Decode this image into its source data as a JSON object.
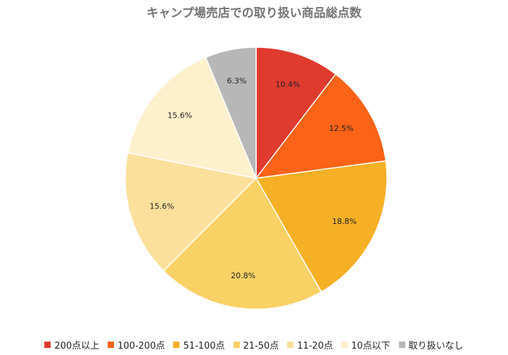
{
  "chart_data": {
    "type": "pie",
    "title": "キャンプ場売店での取り扱い商品総点数",
    "legend_position": "bottom",
    "slices": [
      {
        "label": "200点以上",
        "value": 10.4,
        "display": "10.4%",
        "color": "#E03B2F"
      },
      {
        "label": "100-200点",
        "value": 12.5,
        "display": "12.5%",
        "color": "#FA6318"
      },
      {
        "label": "51-100点",
        "value": 18.8,
        "display": "18.8%",
        "color": "#F6B025"
      },
      {
        "label": "21-50点",
        "value": 20.8,
        "display": "20.8%",
        "color": "#F9D165"
      },
      {
        "label": "11-20点",
        "value": 15.6,
        "display": "15.6%",
        "color": "#FBE09C"
      },
      {
        "label": "10点以下",
        "value": 15.6,
        "display": "15.6%",
        "color": "#FDF0CC"
      },
      {
        "label": "取り扱いなし",
        "value": 6.3,
        "display": "6.3%",
        "color": "#B7B7B7"
      }
    ]
  }
}
